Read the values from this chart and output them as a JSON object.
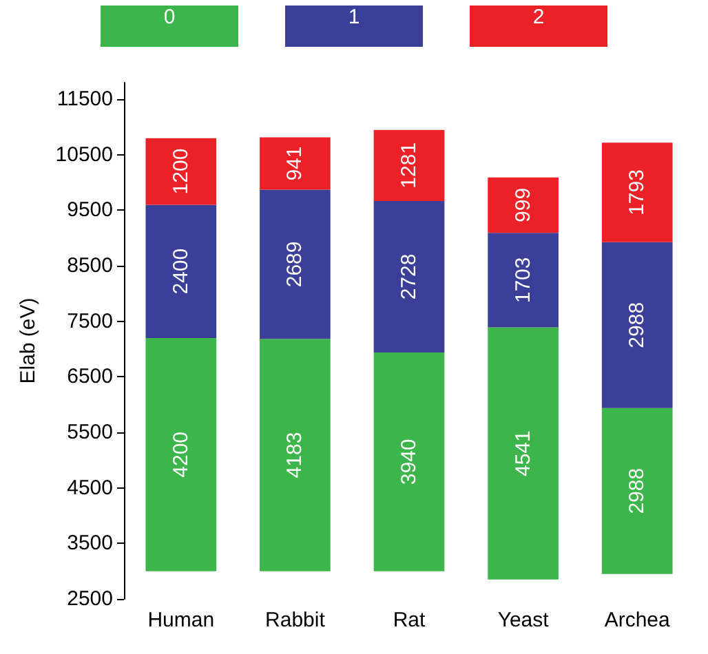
{
  "chart_data": {
    "type": "bar",
    "ylabel": "Elab (eV)",
    "categories": [
      "Human",
      "Rabbit",
      "Rat",
      "Yeast",
      "Archea"
    ],
    "series": [
      {
        "name": "0",
        "color": "#3cb54a",
        "base": [
          3000,
          3000,
          3000,
          2850,
          2950
        ],
        "values": [
          4200,
          4183,
          3940,
          4541,
          2988
        ]
      },
      {
        "name": "1",
        "color": "#3b3f98",
        "base": [
          7200,
          7183,
          6940,
          7391,
          5938
        ],
        "values": [
          2400,
          2689,
          2728,
          1703,
          2988
        ]
      },
      {
        "name": "2",
        "color": "#ec2027",
        "base": [
          9600,
          9872,
          9668,
          9094,
          8926
        ],
        "values": [
          1200,
          941,
          1281,
          999,
          1793
        ]
      }
    ],
    "ylim": [
      2500,
      11800
    ],
    "yticks": [
      2500,
      3500,
      4500,
      5500,
      6500,
      7500,
      8500,
      9500,
      10500,
      11500
    ],
    "data_labels": true,
    "legend": "top",
    "grid": false
  }
}
